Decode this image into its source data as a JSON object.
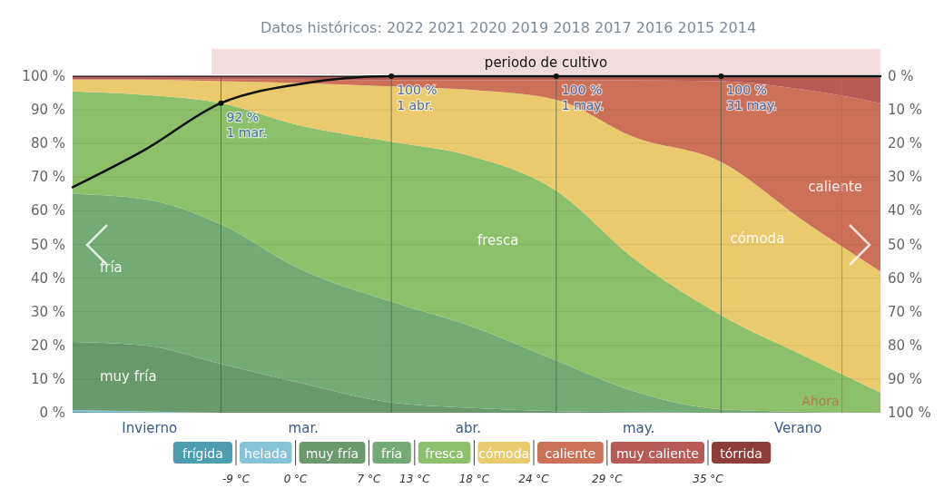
{
  "chart_data": {
    "type": "area",
    "stacked": true,
    "title": "Datos históricos: 2022 2021 2020 2019 2018 2017 2016 2015 2014",
    "x": [
      "--02-02",
      "--02-15",
      "--03-01",
      "--03-15",
      "--04-01",
      "--04-15",
      "--05-01",
      "--05-15",
      "--05-31",
      "--06-15",
      "--06-29"
    ],
    "series": [
      {
        "name": "frígida",
        "color": "#4d9db0",
        "values": [
          0.3,
          0.2,
          0,
          0,
          0,
          0,
          0,
          0,
          0,
          0,
          0
        ]
      },
      {
        "name": "helada",
        "color": "#86c3d6",
        "values": [
          0.5,
          0.2,
          0,
          0,
          0,
          0,
          0,
          0,
          0,
          0,
          0
        ]
      },
      {
        "name": "muy fría",
        "color": "#6a9a6c",
        "values": [
          20.2,
          19.6,
          14.5,
          9,
          3,
          1.5,
          0.5,
          0.2,
          0,
          0,
          0
        ]
      },
      {
        "name": "fría",
        "color": "#74ab74",
        "values": [
          44,
          43.5,
          41.5,
          34,
          30,
          24.5,
          15,
          6.3,
          1,
          0.3,
          0
        ]
      },
      {
        "name": "fresca",
        "color": "#8dc06b",
        "values": [
          30.5,
          31,
          36,
          42.5,
          47.5,
          50.5,
          50.5,
          39.5,
          28,
          16.7,
          6
        ]
      },
      {
        "name": "cómoda",
        "color": "#ebca6e",
        "values": [
          3.5,
          4.5,
          6.5,
          12.5,
          16.5,
          19.5,
          27,
          36,
          45.5,
          40,
          36
        ]
      },
      {
        "name": "caliente",
        "color": "#cc7058",
        "values": [
          0.2,
          0.2,
          0.6,
          1,
          1.8,
          2.8,
          5.8,
          16.8,
          24,
          39,
          50
        ]
      },
      {
        "name": "muy caliente",
        "color": "#b85a56",
        "values": [
          0.3,
          0.3,
          0.4,
          0.5,
          0.7,
          0.7,
          0.7,
          0.7,
          1,
          3.5,
          7.5
        ]
      },
      {
        "name": "tórrida",
        "color": "#8f3d3a",
        "values": [
          0.5,
          0.5,
          0.5,
          0.5,
          0.5,
          0.5,
          0.5,
          0.5,
          0.5,
          0.5,
          0.5
        ]
      },
      {
        "type": "line",
        "name": "periodo de cultivo",
        "color": "#111111",
        "values": [
          67,
          78,
          92,
          97.6,
          100,
          100,
          100,
          100,
          100,
          100,
          100
        ]
      }
    ],
    "xlim": [
      "--02-02",
      "--06-29"
    ],
    "xticks": [
      {
        "value": "--02-16",
        "label": "Invierno"
      },
      {
        "value": "--03-16",
        "label": "mar."
      },
      {
        "value": "--04-15",
        "label": "abr."
      },
      {
        "value": "--05-16",
        "label": "may."
      },
      {
        "value": "--06-14",
        "label": "Verano"
      }
    ],
    "ylim": [
      0,
      100
    ],
    "yticks": [
      {
        "value": 0,
        "label": "0 %"
      },
      {
        "value": 10,
        "label": "10 %"
      },
      {
        "value": 20,
        "label": "20 %"
      },
      {
        "value": 30,
        "label": "30 %"
      },
      {
        "value": 40,
        "label": "40 %"
      },
      {
        "value": 50,
        "label": "50 %"
      },
      {
        "value": 60,
        "label": "60 %"
      },
      {
        "value": 70,
        "label": "70 %"
      },
      {
        "value": 80,
        "label": "80 %"
      },
      {
        "value": 90,
        "label": "90 %"
      },
      {
        "value": 100,
        "label": "100 %"
      }
    ],
    "y2lim": [
      100,
      0
    ],
    "y2ticks": [
      {
        "value": 0,
        "label": "0 %"
      },
      {
        "value": 10,
        "label": "10 %"
      },
      {
        "value": 20,
        "label": "20 %"
      },
      {
        "value": 30,
        "label": "30 %"
      },
      {
        "value": 40,
        "label": "40 %"
      },
      {
        "value": 50,
        "label": "50 %"
      },
      {
        "value": 60,
        "label": "60 %"
      },
      {
        "value": 70,
        "label": "70 %"
      },
      {
        "value": 80,
        "label": "80 %"
      },
      {
        "value": 90,
        "label": "90 %"
      },
      {
        "value": 100,
        "label": "100 %"
      }
    ],
    "grid": "y",
    "legend": "bottom",
    "marker": "none",
    "ref_lines": [
      {
        "axis": "x",
        "value": "--03-01",
        "color": "#3d5a3d"
      },
      {
        "axis": "x",
        "value": "--04-01",
        "color": "#3d5a3d"
      },
      {
        "axis": "x",
        "value": "--05-01",
        "color": "#3d5a3d"
      },
      {
        "axis": "x",
        "value": "--05-31",
        "color": "#3d5a3d"
      },
      {
        "axis": "x",
        "value": "--06-22",
        "label": "Ahora",
        "color": "#e8533a"
      }
    ],
    "annotations": [
      {
        "text": "92 %\n1 mar.",
        "x": "--03-01",
        "y": 92
      },
      {
        "text": "100 %\n1 abr.",
        "x": "--04-01",
        "y": 100
      },
      {
        "text": "100 %\n1 may.",
        "x": "--05-01",
        "y": 100
      },
      {
        "text": "100 %\n31 may.",
        "x": "--05-31",
        "y": 100
      },
      "-9 °C",
      "0 °C",
      "7 °C",
      "13 °C",
      "18 °C",
      "24 °C",
      "29 °C",
      "35 °C"
    ]
  }
}
